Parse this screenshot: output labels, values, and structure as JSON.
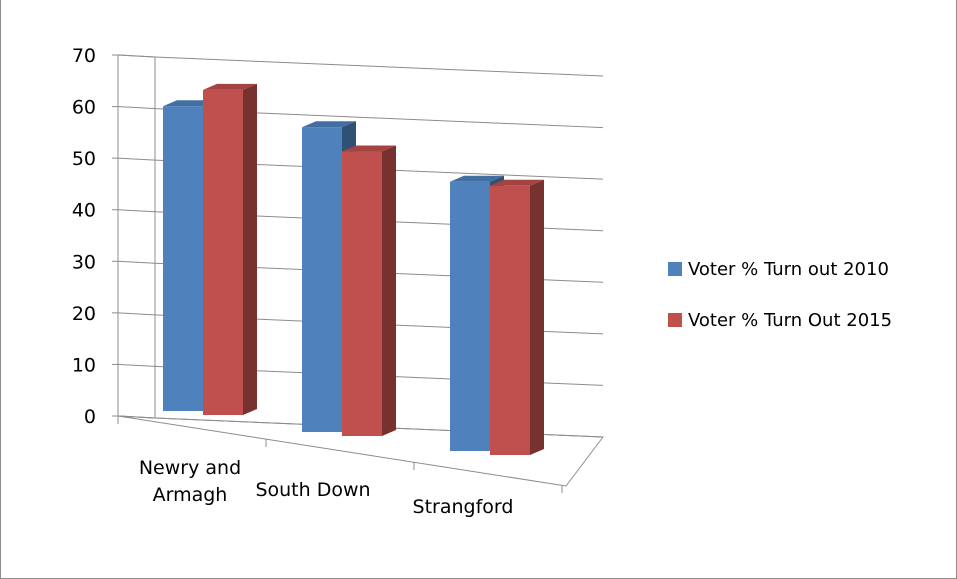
{
  "chart_data": {
    "type": "bar",
    "categories": [
      "Newry and Armagh",
      "South Down",
      "Strangford"
    ],
    "category_lines": [
      [
        "Newry and",
        "Armagh"
      ],
      [
        "South Down"
      ],
      [
        "Strangford"
      ]
    ],
    "series": [
      {
        "name": "Voter % Turn out 2010",
        "color": "#4f81bd",
        "values": [
          60,
          60,
          53
        ]
      },
      {
        "name": "Voter % Turn Out 2015",
        "color": "#c0504d",
        "values": [
          64,
          56,
          53
        ]
      }
    ],
    "ylim": [
      0,
      70
    ],
    "yticks": [
      "0",
      "10",
      "20",
      "30",
      "40",
      "50",
      "60",
      "70"
    ],
    "grid": true,
    "legend_position": "right",
    "three_d": true
  }
}
